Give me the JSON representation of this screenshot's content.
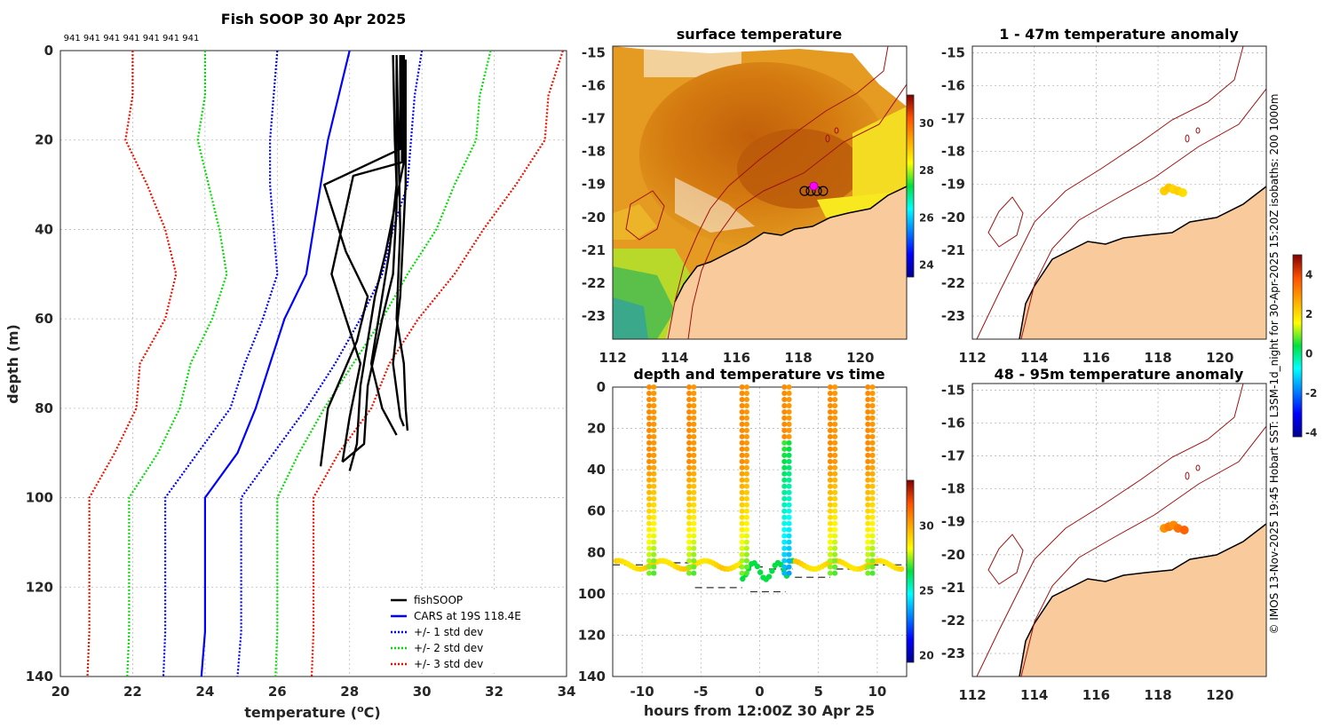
{
  "colors": {
    "fish": "#000000",
    "cars": "#0000ff",
    "std1": "#0000ff",
    "std2": "#00dd00",
    "std3": "#ee1100",
    "land": "#f9cb9c",
    "isobath": "#a01010"
  },
  "chart_data": [
    {
      "id": "profile",
      "type": "line",
      "title": "Fish SOOP 30 Apr 2025",
      "xlabel": "temperature (",
      "xlabel_unit": "o",
      "xlabel_tail": "C)",
      "ylabel": "depth (m)",
      "xlim": [
        20,
        34
      ],
      "ylim": [
        0,
        140
      ],
      "xticks": [
        "20",
        "22",
        "24",
        "26",
        "28",
        "30",
        "32",
        "34"
      ],
      "yticks": [
        "0",
        "20",
        "40",
        "60",
        "80",
        "100",
        "120",
        "140"
      ],
      "top_label": "941 941 941 941 941 941 941",
      "legend": [
        {
          "name": "fishSOOP",
          "color": "#000000",
          "style": "solid"
        },
        {
          "name": "CARS at 19S 118.4E",
          "color": "#0000ff",
          "style": "solid"
        },
        {
          "name": "+/- 1 std dev",
          "color": "#0000ff",
          "style": "dotted"
        },
        {
          "name": "+/- 2 std dev",
          "color": "#00dd00",
          "style": "dotted"
        },
        {
          "name": "+/- 3 std dev",
          "color": "#ee1100",
          "style": "dotted"
        }
      ],
      "series": [
        {
          "name": "CARS at 19S 118.4E",
          "color": "#0000ff",
          "dash": "",
          "points": [
            [
              28.0,
              0
            ],
            [
              27.7,
              10
            ],
            [
              27.4,
              20
            ],
            [
              27.2,
              30
            ],
            [
              27.0,
              40
            ],
            [
              26.8,
              50
            ],
            [
              26.2,
              60
            ],
            [
              25.8,
              70
            ],
            [
              25.4,
              80
            ],
            [
              24.9,
              90
            ],
            [
              24.0,
              100
            ],
            [
              24.0,
              110
            ],
            [
              24.0,
              120
            ],
            [
              24.0,
              130
            ],
            [
              23.9,
              140
            ]
          ]
        },
        {
          "name": "-1 std",
          "color": "#0000ff",
          "dash": "2,2",
          "points": [
            [
              26.0,
              0
            ],
            [
              25.9,
              10
            ],
            [
              25.8,
              20
            ],
            [
              25.8,
              30
            ],
            [
              25.9,
              40
            ],
            [
              26.0,
              50
            ],
            [
              25.6,
              60
            ],
            [
              25.1,
              70
            ],
            [
              24.7,
              80
            ],
            [
              23.8,
              90
            ],
            [
              22.9,
              100
            ],
            [
              22.9,
              110
            ],
            [
              22.9,
              120
            ],
            [
              22.9,
              130
            ],
            [
              22.85,
              140
            ]
          ]
        },
        {
          "name": "+1 std",
          "color": "#0000ff",
          "dash": "2,2",
          "points": [
            [
              30.0,
              0
            ],
            [
              29.8,
              10
            ],
            [
              29.7,
              20
            ],
            [
              29.6,
              30
            ],
            [
              29.2,
              40
            ],
            [
              28.9,
              50
            ],
            [
              28.3,
              60
            ],
            [
              27.6,
              70
            ],
            [
              26.8,
              80
            ],
            [
              25.9,
              90
            ],
            [
              25.0,
              100
            ],
            [
              25.0,
              110
            ],
            [
              25.0,
              120
            ],
            [
              25.0,
              130
            ],
            [
              24.9,
              140
            ]
          ]
        },
        {
          "name": "-2 std",
          "color": "#00dd00",
          "dash": "2,2",
          "points": [
            [
              24.0,
              0
            ],
            [
              24.0,
              10
            ],
            [
              23.8,
              20
            ],
            [
              24.1,
              30
            ],
            [
              24.4,
              40
            ],
            [
              24.6,
              50
            ],
            [
              24.2,
              60
            ],
            [
              23.6,
              70
            ],
            [
              23.3,
              80
            ],
            [
              22.7,
              90
            ],
            [
              21.9,
              100
            ],
            [
              21.9,
              110
            ],
            [
              21.9,
              120
            ],
            [
              21.9,
              130
            ],
            [
              21.85,
              140
            ]
          ]
        },
        {
          "name": "+2 std",
          "color": "#00dd00",
          "dash": "2,2",
          "points": [
            [
              31.9,
              0
            ],
            [
              31.6,
              10
            ],
            [
              31.5,
              20
            ],
            [
              30.9,
              30
            ],
            [
              30.4,
              40
            ],
            [
              29.6,
              50
            ],
            [
              28.9,
              60
            ],
            [
              28.1,
              70
            ],
            [
              27.3,
              80
            ],
            [
              26.6,
              90
            ],
            [
              26.0,
              100
            ],
            [
              26.0,
              110
            ],
            [
              26.0,
              120
            ],
            [
              26.0,
              130
            ],
            [
              25.95,
              140
            ]
          ]
        },
        {
          "name": "-3 std",
          "color": "#ee1100",
          "dash": "2,2",
          "points": [
            [
              22.0,
              0
            ],
            [
              22.0,
              10
            ],
            [
              21.8,
              20
            ],
            [
              22.4,
              30
            ],
            [
              22.9,
              40
            ],
            [
              23.2,
              50
            ],
            [
              22.9,
              60
            ],
            [
              22.2,
              70
            ],
            [
              22.1,
              80
            ],
            [
              21.5,
              90
            ],
            [
              20.8,
              100
            ],
            [
              20.8,
              110
            ],
            [
              20.8,
              120
            ],
            [
              20.8,
              130
            ],
            [
              20.75,
              140
            ]
          ]
        },
        {
          "name": "+3 std",
          "color": "#ee1100",
          "dash": "2,2",
          "points": [
            [
              33.9,
              0
            ],
            [
              33.5,
              10
            ],
            [
              33.4,
              20
            ],
            [
              32.6,
              30
            ],
            [
              31.7,
              40
            ],
            [
              30.9,
              50
            ],
            [
              29.9,
              60
            ],
            [
              29.1,
              70
            ],
            [
              28.6,
              80
            ],
            [
              27.7,
              90
            ],
            [
              27.0,
              100
            ],
            [
              27.0,
              110
            ],
            [
              27.0,
              120
            ],
            [
              27.0,
              130
            ],
            [
              26.95,
              140
            ]
          ]
        },
        {
          "name": "fishSOOP cast 1",
          "color": "#000000",
          "dash": "",
          "points": [
            [
              29.3,
              1
            ],
            [
              29.35,
              20
            ],
            [
              29.4,
              40
            ],
            [
              29.3,
              60
            ],
            [
              29.5,
              70
            ],
            [
              29.55,
              80
            ],
            [
              29.6,
              85
            ]
          ]
        },
        {
          "name": "fishSOOP cast 2",
          "color": "#000000",
          "dash": "",
          "points": [
            [
              29.2,
              1
            ],
            [
              29.25,
              20
            ],
            [
              29.3,
              30
            ],
            [
              29.1,
              45
            ],
            [
              28.8,
              60
            ],
            [
              28.6,
              70
            ],
            [
              28.9,
              80
            ],
            [
              29.3,
              86
            ]
          ]
        },
        {
          "name": "fishSOOP cast 3",
          "color": "#000000",
          "dash": "",
          "points": [
            [
              29.4,
              1
            ],
            [
              29.4,
              22
            ],
            [
              27.3,
              30
            ],
            [
              27.9,
              45
            ],
            [
              28.5,
              55
            ],
            [
              28.2,
              65
            ],
            [
              27.4,
              80
            ],
            [
              27.2,
              93
            ]
          ]
        },
        {
          "name": "fishSOOP cast 4",
          "color": "#000000",
          "dash": "",
          "points": [
            [
              29.45,
              1
            ],
            [
              29.45,
              25
            ],
            [
              28.1,
              28
            ],
            [
              27.5,
              50
            ],
            [
              27.9,
              60
            ],
            [
              28.3,
              70
            ],
            [
              28.0,
              82
            ],
            [
              27.8,
              92
            ]
          ]
        },
        {
          "name": "fishSOOP cast 5",
          "color": "#000000",
          "dash": "",
          "points": [
            [
              29.5,
              1
            ],
            [
              29.5,
              25
            ],
            [
              29.0,
              45
            ],
            [
              28.7,
              55
            ],
            [
              28.3,
              75
            ],
            [
              28.2,
              88
            ],
            [
              28.0,
              94
            ]
          ]
        },
        {
          "name": "fishSOOP cast 6",
          "color": "#000000",
          "dash": "",
          "points": [
            [
              29.3,
              2
            ],
            [
              29.3,
              35
            ],
            [
              29.2,
              50
            ],
            [
              28.9,
              60
            ],
            [
              28.5,
              75
            ],
            [
              28.4,
              88
            ],
            [
              27.8,
              92
            ]
          ]
        },
        {
          "name": "fishSOOP cast 7",
          "color": "#000000",
          "dash": "",
          "points": [
            [
              29.55,
              2
            ],
            [
              29.55,
              30
            ],
            [
              29.4,
              55
            ],
            [
              29.2,
              70
            ],
            [
              29.4,
              82
            ],
            [
              29.5,
              84
            ]
          ]
        }
      ]
    },
    {
      "id": "sst_map",
      "type": "heatmap",
      "title": "surface temperature",
      "xlim": [
        112,
        121.5
      ],
      "ylim": [
        -23.7,
        -14.8
      ],
      "xticks": [
        "112",
        "114",
        "116",
        "118",
        "120"
      ],
      "yticks": [
        "-15",
        "-16",
        "-17",
        "-18",
        "-19",
        "-20",
        "-21",
        "-22",
        "-23"
      ],
      "colorbar_ticks": [
        "24",
        "26",
        "28",
        "30"
      ],
      "colorbar_range": [
        23.5,
        31.2
      ],
      "stations": [
        [
          118.2,
          -19.2
        ],
        [
          118.4,
          -19.2
        ],
        [
          118.6,
          -19.2
        ],
        [
          118.8,
          -19.2
        ]
      ],
      "vessel": [
        118.5,
        -19.05
      ]
    },
    {
      "id": "timeseries",
      "type": "scatter",
      "title": "depth and temperature vs time",
      "xlabel": "hours from 12:00Z 30 Apr 25",
      "xlim": [
        -12.5,
        12.5
      ],
      "ylim": [
        0,
        140
      ],
      "xticks": [
        "-10",
        "-5",
        "0",
        "5",
        "10"
      ],
      "yticks": [
        "0",
        "20",
        "40",
        "60",
        "80",
        "100",
        "120",
        "140"
      ],
      "colorbar_ticks": [
        "20",
        "25",
        "30"
      ],
      "colorbar_range": [
        19.5,
        33.5
      ],
      "casts": [
        -9.2,
        -5.8,
        -1.3,
        2.3,
        6.2,
        9.4
      ],
      "bottom_segments": [
        [
          -12.5,
          -9.5,
          86
        ],
        [
          -9.3,
          -6.0,
          85
        ],
        [
          -2.3,
          0.5,
          87
        ],
        [
          0.8,
          2.8,
          88
        ],
        [
          3.0,
          6.0,
          92
        ],
        [
          6.5,
          9.2,
          88
        ],
        [
          9.5,
          12.5,
          86
        ],
        [
          -5.5,
          -1.5,
          97
        ],
        [
          -0.8,
          2.2,
          99
        ]
      ]
    },
    {
      "id": "anom_upper",
      "type": "scatter",
      "title": "1 - 47m temperature anomaly",
      "xlim": [
        112,
        121.5
      ],
      "ylim": [
        -23.7,
        -14.8
      ],
      "xticks": [
        "112",
        "114",
        "116",
        "118",
        "120"
      ],
      "yticks": [
        "-15",
        "-16",
        "-17",
        "-18",
        "-19",
        "-20",
        "-21",
        "-22",
        "-23"
      ],
      "points": [
        [
          118.2,
          -19.2,
          2.2
        ],
        [
          118.35,
          -19.1,
          2.3
        ],
        [
          118.5,
          -19.15,
          2.1
        ],
        [
          118.65,
          -19.2,
          2.2
        ],
        [
          118.8,
          -19.25,
          2.0
        ]
      ]
    },
    {
      "id": "anom_lower",
      "type": "scatter",
      "title": "48 - 95m temperature anomaly",
      "xlim": [
        112,
        121.5
      ],
      "ylim": [
        -23.7,
        -14.8
      ],
      "xticks": [
        "112",
        "114",
        "116",
        "118",
        "120"
      ],
      "yticks": [
        "-15",
        "-16",
        "-17",
        "-18",
        "-19",
        "-20",
        "-21",
        "-22",
        "-23"
      ],
      "points": [
        [
          118.2,
          -19.2,
          3.0
        ],
        [
          118.35,
          -19.15,
          3.3
        ],
        [
          118.5,
          -19.1,
          3.1
        ],
        [
          118.65,
          -19.2,
          3.4
        ],
        [
          118.85,
          -19.25,
          3.6
        ]
      ]
    },
    {
      "id": "anom_colorbar",
      "type": "heatmap",
      "colorbar_ticks": [
        "4",
        "2",
        "0",
        "-2",
        "-4"
      ],
      "colorbar_range": [
        -4.2,
        5.0
      ]
    }
  ],
  "side_text": "© IMOS 13-Nov-2025 19:45 Hobart SST: L3SM-1d_night for 30-Apr-2025 15:20Z isobaths: 200  1000m"
}
